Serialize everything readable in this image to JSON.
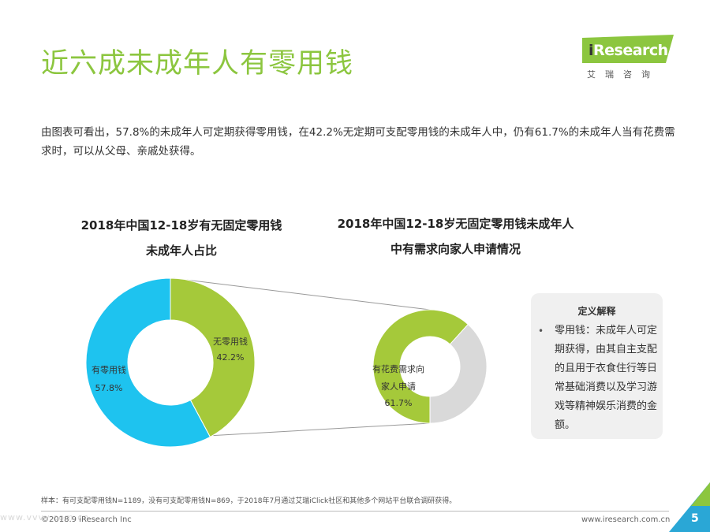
{
  "page": {
    "title": "近六成未成年人有零用钱",
    "intro": "由图表可看出，57.8%的未成年人可定期获得零用钱，在42.2%无定期可支配零用钱的未成年人中，仍有61.7%的未成年人当有花费需求时，可以从父母、亲戚处获得。"
  },
  "logo": {
    "i": "i",
    "word": "Research",
    "cn": "艾瑞咨询"
  },
  "colors": {
    "accent_green": "#a5c93a",
    "accent_blue": "#1ec3ef",
    "gray": "#d9d9d9",
    "title_green": "#8cc63f"
  },
  "chart_data": [
    {
      "type": "pie",
      "variant": "donut",
      "title_line1": "2018年中国12-18岁有无固定零用钱",
      "title_line2": "未成年人占比",
      "slices": [
        {
          "label": "无零用钱",
          "value": 42.2,
          "value_text": "42.2%",
          "color": "#a5c93a"
        },
        {
          "label": "有零用钱",
          "value": 57.8,
          "value_text": "57.8%",
          "color": "#1ec3ef"
        }
      ]
    },
    {
      "type": "pie",
      "variant": "donut",
      "title_line1": "2018年中国12-18岁无固定零用钱未成年人",
      "title_line2": "中有需求向家人申请情况",
      "slices": [
        {
          "label_line1": "有花费需求向",
          "label_line2": "家人申请",
          "value": 61.7,
          "value_text": "61.7%",
          "color": "#a5c93a"
        },
        {
          "label": "",
          "value": 38.3,
          "color": "#d9d9d9"
        }
      ]
    }
  ],
  "definition": {
    "title": "定义解释",
    "bullet": "•",
    "text": "零用钱：未成年人可定期获得，由其自主支配的且用于衣食住行等日常基础消费以及学习游戏等精神娱乐消费的金额。"
  },
  "footer": {
    "sample": "样本：有可支配零用钱N=1189，没有可支配零用钱N=869，于2018年7月通过艾瑞iClick社区和其他多个网站平台联合调研获得。",
    "copyright": "©2018.9 iResearch Inc",
    "url": "www.iresearch.com.cn",
    "page_number": "5",
    "watermark": "www.vvvv.com.cn"
  }
}
